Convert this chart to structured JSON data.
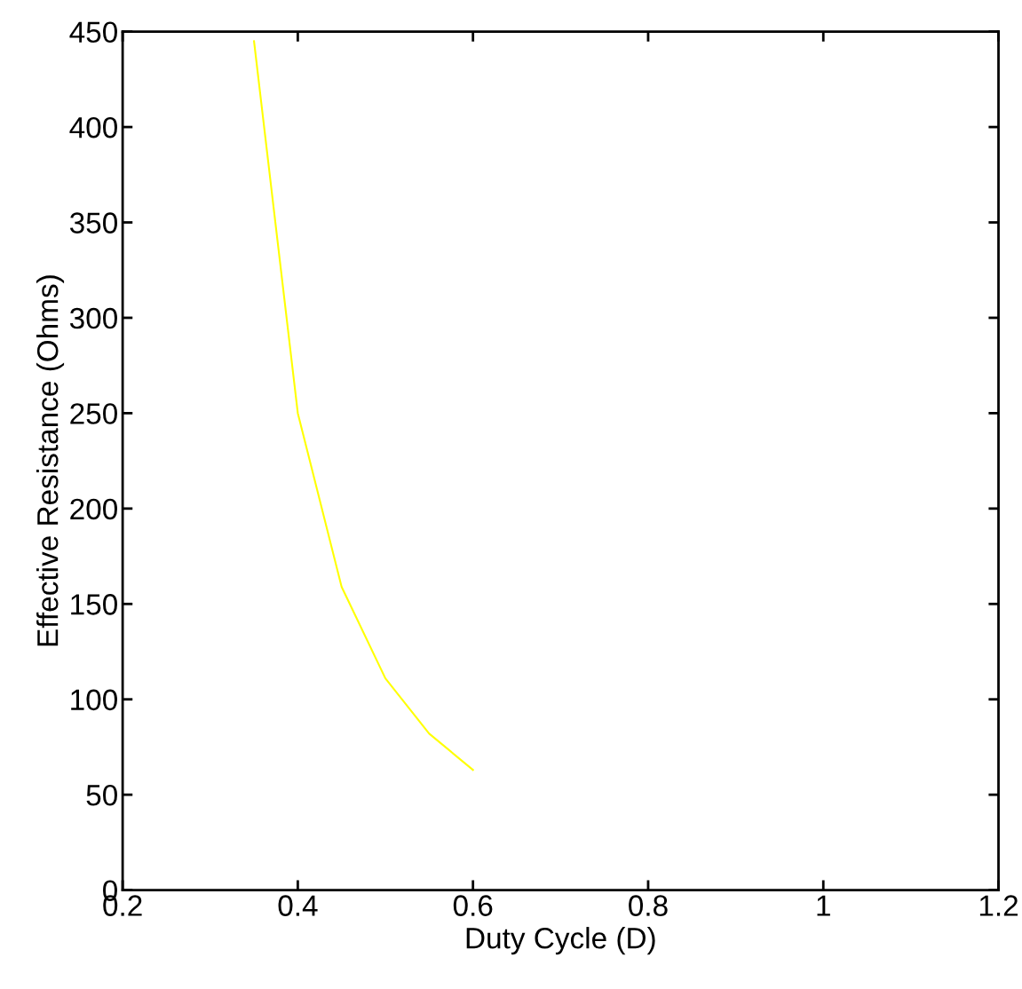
{
  "chart_data": {
    "type": "line",
    "xlabel": "Duty Cycle (D)",
    "ylabel": "Effective Resistance (Ohms)",
    "x": [
      0.35,
      0.4,
      0.45,
      0.5,
      0.55,
      0.6
    ],
    "series": [
      {
        "color": "#ffff00",
        "values": [
          445,
          250,
          159,
          111,
          82,
          63
        ]
      }
    ],
    "xlim": [
      0.2,
      1.2
    ],
    "xticks": [
      0.2,
      0.4,
      0.6,
      0.8,
      1,
      1.2
    ],
    "ylim": [
      0,
      450
    ],
    "yticks": [
      0,
      50,
      100,
      150,
      200,
      250,
      300,
      350,
      400,
      450
    ],
    "grid": false,
    "legend": false,
    "marker": "none",
    "line_style": "solid"
  }
}
